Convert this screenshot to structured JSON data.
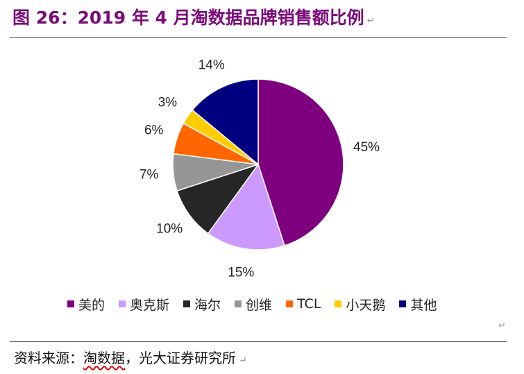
{
  "title": {
    "prefix": "图 ",
    "fig_no": "26",
    "colon": "：",
    "year": "2019",
    "text1": " 年 ",
    "month": "4",
    "text2": " 月淘数据品牌销售额比例"
  },
  "source": {
    "label": "资料来源：",
    "underlined": "淘数据",
    "rest": "，光大证券研究所"
  },
  "chart_data": {
    "type": "pie",
    "title": "2019年4月淘数据品牌销售额比例",
    "unit": "%",
    "start": "12 o'clock, clockwise",
    "slices": [
      {
        "label": "美的",
        "value": 45,
        "value_label": "45%",
        "color": "#7f007f"
      },
      {
        "label": "奥克斯",
        "value": 15,
        "value_label": "15%",
        "color": "#cc99ff"
      },
      {
        "label": "海尔",
        "value": 10,
        "value_label": "10%",
        "color": "#262626"
      },
      {
        "label": "创维",
        "value": 7,
        "value_label": "7%",
        "color": "#969696"
      },
      {
        "label": "TCL",
        "value": 6,
        "value_label": "6%",
        "color": "#ff6600"
      },
      {
        "label": "小天鹅",
        "value": 3,
        "value_label": "3%",
        "color": "#ffcc00"
      },
      {
        "label": "其他",
        "value": 14,
        "value_label": "14%",
        "color": "#000080"
      }
    ],
    "legend_position": "bottom"
  }
}
